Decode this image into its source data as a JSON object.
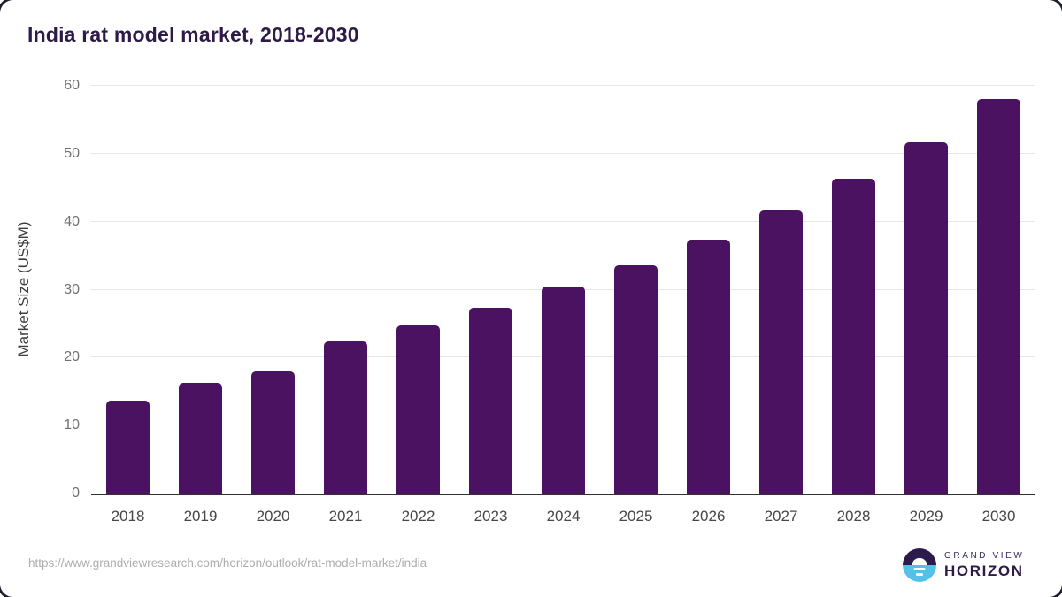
{
  "title": "India rat model market, 2018-2030",
  "chart_data": {
    "type": "bar",
    "categories": [
      "2018",
      "2019",
      "2020",
      "2021",
      "2022",
      "2023",
      "2024",
      "2025",
      "2026",
      "2027",
      "2028",
      "2029",
      "2030"
    ],
    "values": [
      13.7,
      16.3,
      17.9,
      22.4,
      24.7,
      27.3,
      30.4,
      33.6,
      37.3,
      41.6,
      46.4,
      51.7,
      58.1
    ],
    "title": "India rat model market, 2018-2030",
    "xlabel": "",
    "ylabel": "Market Size (US$M)",
    "ylim": [
      0,
      60
    ],
    "yticks": [
      0,
      10,
      20,
      30,
      40,
      50,
      60
    ],
    "grid": true,
    "legend": "none",
    "bar_color": "#4A1261"
  },
  "footer": {
    "source_url": "https://www.grandviewresearch.com/horizon/outlook/rat-model-market/india",
    "logo": {
      "line1": "GRAND VIEW",
      "line2": "HORIZON"
    }
  },
  "colors": {
    "bar": "#4A1261",
    "title_text": "#2E1A47",
    "logo_dark_half": "#2B1B4D",
    "logo_blue_half": "#56C1E8",
    "gridline": "#E6E6E6",
    "axis_line": "#333333"
  }
}
